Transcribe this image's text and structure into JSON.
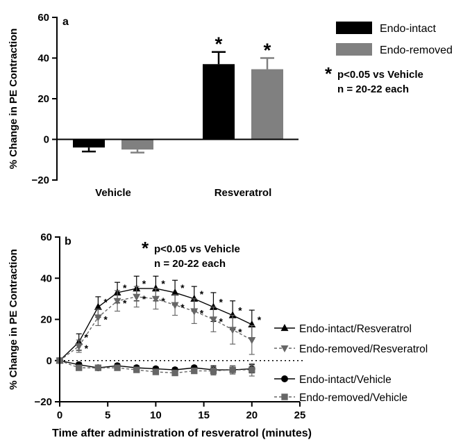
{
  "chart_data": [
    {
      "type": "bar",
      "panel_label": "a",
      "ylabel": "% Change in PE Contraction",
      "ylim": [
        -20,
        60
      ],
      "yticks": [
        -20,
        0,
        20,
        40,
        60
      ],
      "yticks_text": [
        "−20",
        "0",
        "20",
        "40",
        "60"
      ],
      "categories": [
        "Vehicle",
        "Resveratrol"
      ],
      "series": [
        {
          "name": "Endo-intact",
          "color": "#000000",
          "values": [
            -4,
            37
          ],
          "errors": [
            2,
            6
          ],
          "significance": [
            "",
            "*"
          ]
        },
        {
          "name": "Endo-removed",
          "color": "#808080",
          "values": [
            -5,
            34.5
          ],
          "errors": [
            1.5,
            5.5
          ],
          "significance": [
            "",
            "*"
          ]
        }
      ],
      "legend_position": "right",
      "annotation": {
        "star": "*",
        "line1": "p<0.05 vs Vehicle",
        "line2": "n = 20-22 each"
      }
    },
    {
      "type": "line",
      "panel_label": "b",
      "ylabel": "% Change in PE Contraction",
      "xlabel": "Time after administration of resveratrol (minutes)",
      "xlim": [
        0,
        25
      ],
      "ylim": [
        -20,
        60
      ],
      "xticks": [
        0,
        5,
        10,
        15,
        20,
        25
      ],
      "xticks_text": [
        "0",
        "5",
        "10",
        "15",
        "20",
        "25"
      ],
      "yticks": [
        -20,
        0,
        20,
        40,
        60
      ],
      "yticks_text": [
        "−20",
        "0",
        "20",
        "40",
        "60"
      ],
      "x": [
        0,
        2,
        4,
        6,
        8,
        10,
        12,
        14,
        16,
        18,
        20
      ],
      "series": [
        {
          "name": "Endo-intact/Resveratrol",
          "marker": "triangle-up",
          "line": "solid",
          "color": "#000000",
          "values": [
            0,
            9,
            26,
            33,
            35,
            35,
            33,
            30,
            26,
            22,
            17.5
          ],
          "errors": [
            0,
            4,
            5,
            5,
            6,
            6,
            6,
            6,
            7,
            7,
            7
          ]
        },
        {
          "name": "Endo-removed/Resveratrol",
          "marker": "triangle-down",
          "line": "dashed",
          "color": "#666666",
          "values": [
            0,
            7,
            21,
            29,
            31,
            30,
            27,
            24,
            20,
            15,
            10
          ],
          "errors": [
            0,
            3,
            4,
            5,
            5,
            5,
            5,
            6,
            6,
            7,
            7
          ]
        },
        {
          "name": "Endo-intact/Vehicle",
          "marker": "circle",
          "line": "solid",
          "color": "#000000",
          "values": [
            0,
            -2,
            -3.5,
            -2.5,
            -3.5,
            -4,
            -4.5,
            -3.5,
            -4.5,
            -4.5,
            -4
          ],
          "errors": [
            0,
            1,
            1,
            1,
            1,
            1,
            1,
            1,
            2,
            2,
            2
          ]
        },
        {
          "name": "Endo-removed/Vehicle",
          "marker": "square",
          "line": "dashed",
          "color": "#666666",
          "values": [
            0,
            -3.5,
            -3.5,
            -3.5,
            -4.5,
            -5.5,
            -6,
            -5,
            -5,
            -4.5,
            -4.5
          ],
          "errors": [
            0,
            1,
            1,
            1,
            1,
            1,
            1,
            1,
            2,
            2,
            3
          ]
        }
      ],
      "significance_points": [
        {
          "series": 0,
          "indices": [
            1,
            2,
            3,
            4,
            5,
            6,
            7,
            8,
            9,
            10
          ]
        },
        {
          "series": 1,
          "indices": [
            1,
            2,
            3,
            4,
            5,
            6,
            7,
            8,
            9
          ]
        }
      ],
      "reference_line": {
        "y": 0,
        "style": "dotted"
      },
      "legend_position": "right",
      "annotation": {
        "star": "*",
        "line1": "p<0.05 vs Vehicle",
        "line2": "n = 20-22 each"
      }
    }
  ]
}
